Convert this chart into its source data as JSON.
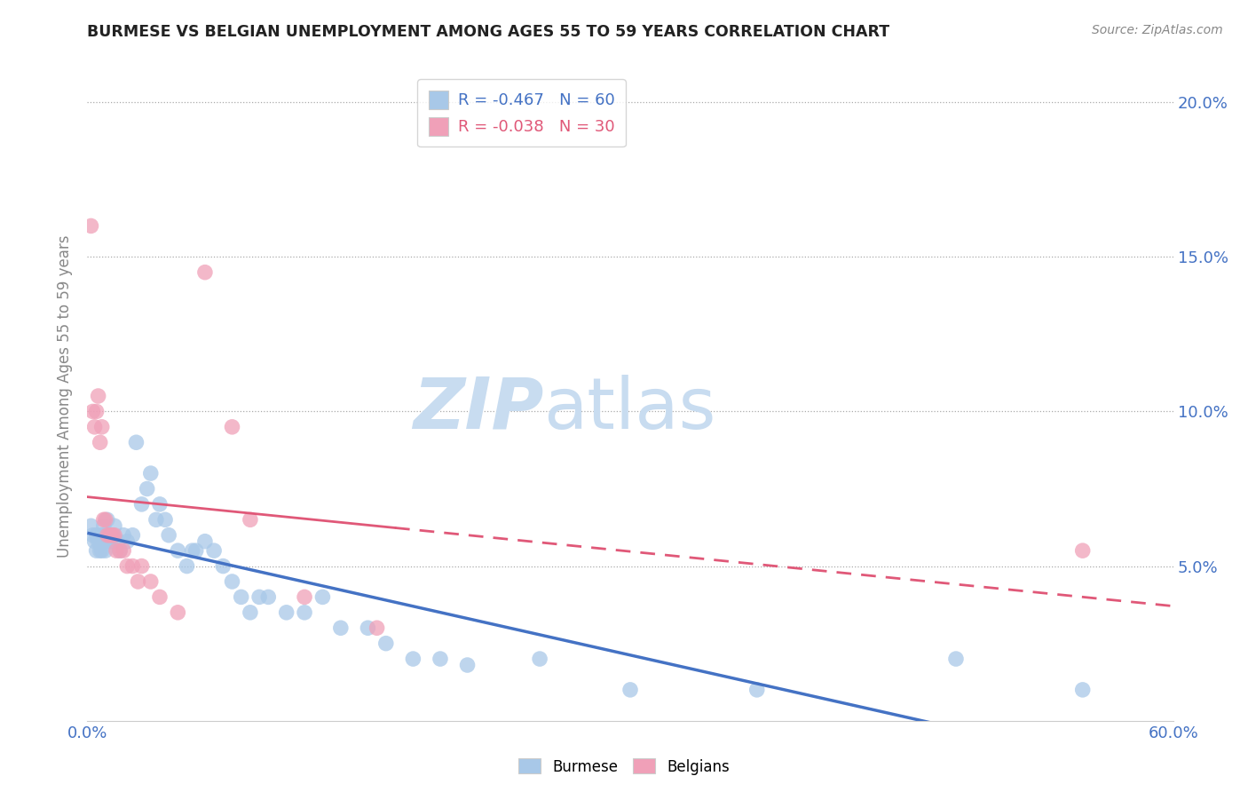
{
  "title": "BURMESE VS BELGIAN UNEMPLOYMENT AMONG AGES 55 TO 59 YEARS CORRELATION CHART",
  "source": "Source: ZipAtlas.com",
  "ylabel": "Unemployment Among Ages 55 to 59 years",
  "xlim": [
    0.0,
    0.6
  ],
  "ylim": [
    0.0,
    0.21
  ],
  "xticks": [
    0.0,
    0.1,
    0.2,
    0.3,
    0.4,
    0.5,
    0.6
  ],
  "xticklabels": [
    "0.0%",
    "",
    "",
    "",
    "",
    "",
    "60.0%"
  ],
  "yticks_right": [
    0.05,
    0.1,
    0.15,
    0.2
  ],
  "yticklabels_right": [
    "5.0%",
    "10.0%",
    "15.0%",
    "20.0%"
  ],
  "burmese_color": "#A8C8E8",
  "belgians_color": "#F0A0B8",
  "burmese_line_color": "#4472C4",
  "belgians_line_color": "#E05878",
  "legend_R_burmese": "-0.467",
  "legend_N_burmese": "60",
  "legend_R_belgians": "-0.038",
  "legend_N_belgians": "30",
  "watermark_zip": "ZIP",
  "watermark_atlas": "atlas",
  "burmese_x": [
    0.002,
    0.003,
    0.004,
    0.005,
    0.005,
    0.006,
    0.006,
    0.007,
    0.007,
    0.008,
    0.008,
    0.009,
    0.009,
    0.01,
    0.01,
    0.011,
    0.012,
    0.013,
    0.014,
    0.015,
    0.015,
    0.017,
    0.018,
    0.02,
    0.022,
    0.025,
    0.027,
    0.03,
    0.033,
    0.035,
    0.038,
    0.04,
    0.043,
    0.045,
    0.05,
    0.055,
    0.058,
    0.06,
    0.065,
    0.07,
    0.075,
    0.08,
    0.085,
    0.09,
    0.095,
    0.1,
    0.11,
    0.12,
    0.13,
    0.14,
    0.155,
    0.165,
    0.18,
    0.195,
    0.21,
    0.25,
    0.3,
    0.37,
    0.48,
    0.55
  ],
  "burmese_y": [
    0.063,
    0.06,
    0.058,
    0.06,
    0.055,
    0.058,
    0.06,
    0.055,
    0.058,
    0.06,
    0.055,
    0.058,
    0.063,
    0.06,
    0.055,
    0.065,
    0.06,
    0.058,
    0.06,
    0.058,
    0.063,
    0.058,
    0.055,
    0.06,
    0.058,
    0.06,
    0.09,
    0.07,
    0.075,
    0.08,
    0.065,
    0.07,
    0.065,
    0.06,
    0.055,
    0.05,
    0.055,
    0.055,
    0.058,
    0.055,
    0.05,
    0.045,
    0.04,
    0.035,
    0.04,
    0.04,
    0.035,
    0.035,
    0.04,
    0.03,
    0.03,
    0.025,
    0.02,
    0.02,
    0.018,
    0.02,
    0.01,
    0.01,
    0.02,
    0.01
  ],
  "belgians_x": [
    0.002,
    0.003,
    0.004,
    0.005,
    0.006,
    0.007,
    0.008,
    0.009,
    0.01,
    0.011,
    0.012,
    0.013,
    0.014,
    0.015,
    0.016,
    0.018,
    0.02,
    0.022,
    0.025,
    0.028,
    0.03,
    0.035,
    0.04,
    0.05,
    0.065,
    0.08,
    0.09,
    0.12,
    0.16,
    0.55
  ],
  "belgians_y": [
    0.16,
    0.1,
    0.095,
    0.1,
    0.105,
    0.09,
    0.095,
    0.065,
    0.065,
    0.06,
    0.06,
    0.06,
    0.06,
    0.06,
    0.055,
    0.055,
    0.055,
    0.05,
    0.05,
    0.045,
    0.05,
    0.045,
    0.04,
    0.035,
    0.145,
    0.095,
    0.065,
    0.04,
    0.03,
    0.055
  ],
  "belgian_solid_xlim": [
    0.0,
    0.17
  ],
  "belgian_dashed_xlim": [
    0.17,
    0.62
  ],
  "burmese_line_xlim": [
    0.0,
    0.62
  ]
}
